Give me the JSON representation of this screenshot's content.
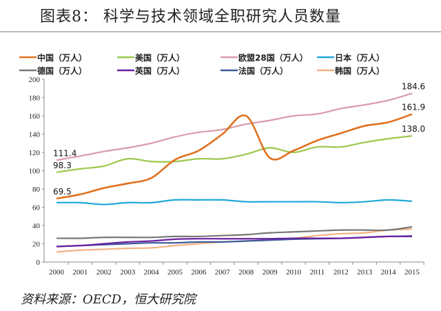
{
  "title": "图表8：  科学与技术领域全职研究人员数量",
  "source": "资料来源：OECD，恒大研究院",
  "chart_data": {
    "type": "line",
    "title": "图表8：  科学与技术领域全职研究人员数量",
    "x": [
      "2000",
      "2001",
      "2002",
      "2003",
      "2004",
      "2005",
      "2006",
      "2007",
      "2008",
      "2009",
      "2010",
      "2011",
      "2012",
      "2013",
      "2014",
      "2015"
    ],
    "ylim": [
      0,
      200
    ],
    "yticks": [
      0,
      20,
      40,
      60,
      80,
      100,
      120,
      140,
      160,
      180,
      200
    ],
    "grid": false,
    "legend": "top",
    "series": [
      {
        "name": "中国（万人）",
        "color": "#E0701E",
        "values": [
          69.5,
          74,
          81,
          86,
          92,
          112,
          122,
          140,
          160,
          114,
          122,
          133,
          141,
          149,
          153,
          161.9
        ],
        "labels": {
          "0": "69.5",
          "15": "161.9"
        }
      },
      {
        "name": "美国（万人）",
        "color": "#9BC84B",
        "values": [
          98.3,
          102,
          105,
          113,
          110,
          110,
          113,
          113,
          118,
          125,
          120,
          126,
          126,
          131,
          135,
          138.0
        ],
        "labels": {
          "0": "98.3",
          "15": "138.0"
        }
      },
      {
        "name": "欧盟28国（万人）",
        "color": "#D99BA8",
        "values": [
          111.4,
          116,
          121,
          125,
          130,
          137,
          142,
          145,
          151,
          155,
          160,
          162,
          168,
          172,
          177,
          184.6
        ],
        "labels": {
          "0": "111.4",
          "15": "184.6"
        }
      },
      {
        "name": "日本（万人）",
        "color": "#1FA8D8",
        "values": [
          65,
          65,
          63,
          65,
          65,
          68,
          68,
          68,
          66,
          66,
          66,
          66,
          65,
          66,
          68,
          66.5
        ]
      },
      {
        "name": "德国（万人）",
        "color": "#777777",
        "values": [
          26,
          26,
          27,
          27,
          27,
          28,
          28,
          29,
          30,
          32,
          33,
          34,
          35,
          35,
          35,
          38.5
        ]
      },
      {
        "name": "英国（万人）",
        "color": "#6A1FA0",
        "values": [
          17,
          18,
          20,
          22,
          23,
          25,
          25.5,
          25.5,
          25.5,
          25.5,
          26,
          26,
          26,
          27,
          28,
          28
        ]
      },
      {
        "name": "法国（万人）",
        "color": "#3C5A9A",
        "values": [
          17,
          18,
          19,
          20,
          21,
          21,
          22,
          22,
          23,
          24,
          25,
          25.5,
          26,
          27,
          28,
          28.5
        ]
      },
      {
        "name": "韩国（万人）",
        "color": "#F4B183",
        "values": [
          11,
          13,
          14,
          15,
          15.5,
          18,
          20,
          22,
          23,
          24,
          26,
          29,
          31,
          32,
          35,
          36
        ]
      }
    ]
  }
}
